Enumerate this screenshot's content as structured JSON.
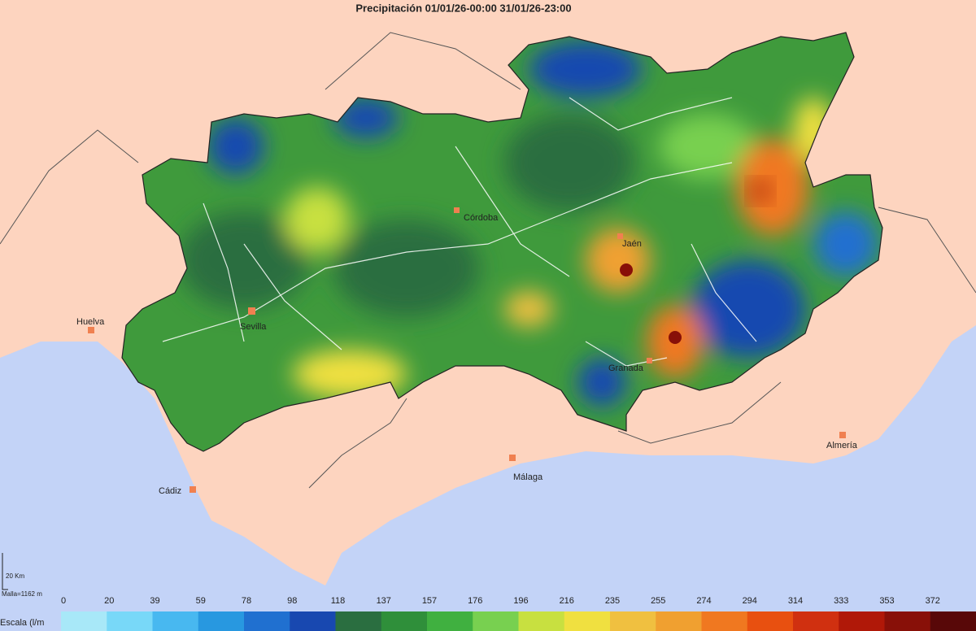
{
  "title": "Precipitación  01/01/26-00:00 31/01/26-23:00",
  "cities": [
    "Córdoba",
    "Jaén",
    "Sevilla",
    "Huelva",
    "Granada",
    "Almería",
    "Málaga",
    "Cádiz"
  ],
  "scale_bar": {
    "distance": "20 Km",
    "mesh": "Malla=1162 m"
  },
  "legend": {
    "label": "Escala (l/m",
    "ticks": [
      0,
      20,
      39,
      59,
      78,
      98,
      118,
      137,
      157,
      176,
      196,
      216,
      235,
      255,
      274,
      294,
      314,
      333,
      353,
      372
    ],
    "colors": [
      "#a8e8f8",
      "#78d8f8",
      "#48b8f0",
      "#2898e0",
      "#2070d0",
      "#1848b0",
      "#2a6e40",
      "#2f8f3a",
      "#40b040",
      "#78d050",
      "#c8e040",
      "#f0e040",
      "#f0c040",
      "#f0a030",
      "#f07820",
      "#e85010",
      "#d03010",
      "#b01808",
      "#881008",
      "#580808"
    ]
  }
}
